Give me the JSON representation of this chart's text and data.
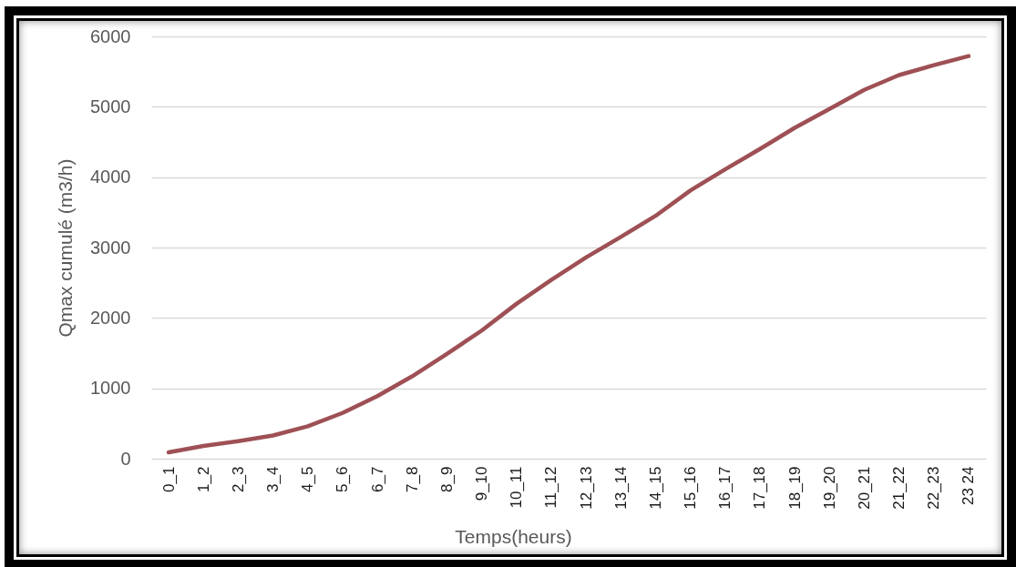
{
  "chart_data": {
    "type": "line",
    "xlabel": "Temps(heurs)",
    "ylabel": "Qmax cumulé (m3/h)",
    "categories": [
      "0_1",
      "1_2",
      "2_3",
      "3_4",
      "4_5",
      "5_6",
      "6_7",
      "7_8",
      "8_9",
      "9_10",
      "10_11",
      "11_12",
      "12_13",
      "13_14",
      "14_15",
      "15_16",
      "16_17",
      "17_18",
      "18_19",
      "19_20",
      "20_21",
      "21_22",
      "22_23",
      "23 24"
    ],
    "series": [
      {
        "color": "#9e5055",
        "values": [
          90,
          180,
          250,
          330,
          460,
          650,
          890,
          1170,
          1490,
          1820,
          2200,
          2540,
          2860,
          3150,
          3450,
          3810,
          4110,
          4400,
          4700,
          4970,
          5240,
          5450,
          5590,
          5720
        ]
      }
    ],
    "ylim": [
      0,
      6000
    ],
    "yticks": [
      0,
      1000,
      2000,
      3000,
      4000,
      5000,
      6000
    ],
    "grid": "y"
  }
}
